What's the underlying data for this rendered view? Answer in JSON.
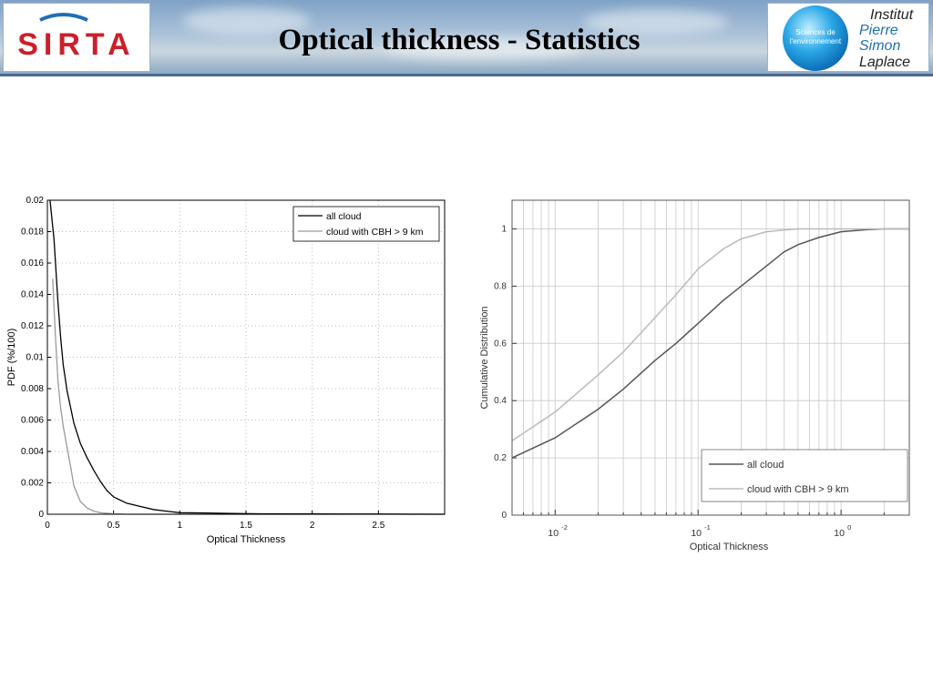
{
  "header": {
    "title": "Optical thickness - Statistics",
    "left_logo": {
      "text": "SIRTA",
      "color": "#cc1f2a",
      "accent": "#1f6fb5"
    },
    "right_logo": {
      "badge_lines": [
        "Sciences de",
        "l'environnement"
      ],
      "lines": [
        "Institut",
        "Pierre",
        "Simon",
        "Laplace"
      ]
    }
  },
  "chart_data": [
    {
      "type": "line",
      "xlabel": "Optical Thickness",
      "ylabel": "PDF (%/100)",
      "xlim": [
        0,
        3
      ],
      "ylim": [
        0,
        0.02
      ],
      "xticks": [
        0,
        0.5,
        1,
        1.5,
        2,
        2.5
      ],
      "xtick_labels": [
        "0",
        "0.5",
        "1",
        "1.5",
        "2",
        "2.5"
      ],
      "yticks": [
        0,
        0.002,
        0.004,
        0.006,
        0.008,
        0.01,
        0.012,
        0.014,
        0.016,
        0.018,
        0.02
      ],
      "ytick_labels": [
        "0",
        "0.002",
        "0.004",
        "0.006",
        "0.008",
        "0.01",
        "0.012",
        "0.014",
        "0.016",
        "0.018",
        "0.02"
      ],
      "grid": true,
      "legend_position": "top-right",
      "series": [
        {
          "name": "all cloud",
          "color": "#000000",
          "x": [
            0.02,
            0.05,
            0.08,
            0.1,
            0.12,
            0.15,
            0.18,
            0.2,
            0.25,
            0.3,
            0.35,
            0.4,
            0.45,
            0.5,
            0.6,
            0.7,
            0.8,
            0.9,
            1.0,
            1.2,
            1.4,
            1.6,
            2.0,
            2.5,
            3.0
          ],
          "y": [
            0.02,
            0.0175,
            0.0135,
            0.0113,
            0.0095,
            0.0078,
            0.0066,
            0.0058,
            0.0045,
            0.0036,
            0.0028,
            0.0021,
            0.0015,
            0.0011,
            0.0007,
            0.0005,
            0.0003,
            0.0002,
            0.0001,
            8e-05,
            5e-05,
            3e-05,
            2e-05,
            1e-05,
            0.0
          ]
        },
        {
          "name": "cloud with CBH > 9 km",
          "color": "#9a9a9a",
          "x": [
            0.04,
            0.06,
            0.08,
            0.1,
            0.12,
            0.15,
            0.18,
            0.2,
            0.25,
            0.3,
            0.35,
            0.4,
            0.5,
            0.6,
            1.0,
            2.0,
            3.0
          ],
          "y": [
            0.015,
            0.0115,
            0.0085,
            0.0068,
            0.0056,
            0.0042,
            0.0028,
            0.0018,
            0.0008,
            0.0004,
            0.0002,
            0.0001,
            3e-05,
            0.0,
            0.0,
            0.0,
            0.0
          ]
        }
      ]
    },
    {
      "type": "line",
      "xlabel": "Optical Thickness",
      "ylabel": "Cumulative Distribution",
      "xscale": "log",
      "xlim": [
        0.005,
        3
      ],
      "ylim": [
        0,
        1.1
      ],
      "xtick_labels": [
        {
          "value": 0.01,
          "base": "10",
          "exp": "-2"
        },
        {
          "value": 0.1,
          "base": "10",
          "exp": "-1"
        },
        {
          "value": 1,
          "base": "10",
          "exp": "0"
        }
      ],
      "yticks": [
        0,
        0.2,
        0.4,
        0.6,
        0.8,
        1
      ],
      "ytick_labels": [
        "0",
        "0.2",
        "0.4",
        "0.6",
        "0.8",
        "1"
      ],
      "grid": true,
      "legend_position": "bottom-right",
      "series": [
        {
          "name": "all cloud",
          "color": "#555555",
          "x": [
            0.005,
            0.01,
            0.02,
            0.03,
            0.05,
            0.07,
            0.1,
            0.15,
            0.2,
            0.3,
            0.4,
            0.5,
            0.7,
            1.0,
            1.5,
            2.0,
            3.0
          ],
          "y": [
            0.2,
            0.27,
            0.37,
            0.44,
            0.54,
            0.6,
            0.67,
            0.75,
            0.8,
            0.87,
            0.92,
            0.945,
            0.97,
            0.99,
            0.997,
            1.0,
            1.0
          ]
        },
        {
          "name": "cloud with CBH > 9 km",
          "color": "#bbbbbb",
          "x": [
            0.005,
            0.01,
            0.02,
            0.03,
            0.05,
            0.07,
            0.1,
            0.15,
            0.2,
            0.3,
            0.4,
            0.5,
            1.0,
            3.0
          ],
          "y": [
            0.26,
            0.36,
            0.49,
            0.57,
            0.69,
            0.77,
            0.86,
            0.93,
            0.965,
            0.99,
            0.996,
            1.0,
            1.0,
            1.0
          ]
        }
      ]
    }
  ]
}
